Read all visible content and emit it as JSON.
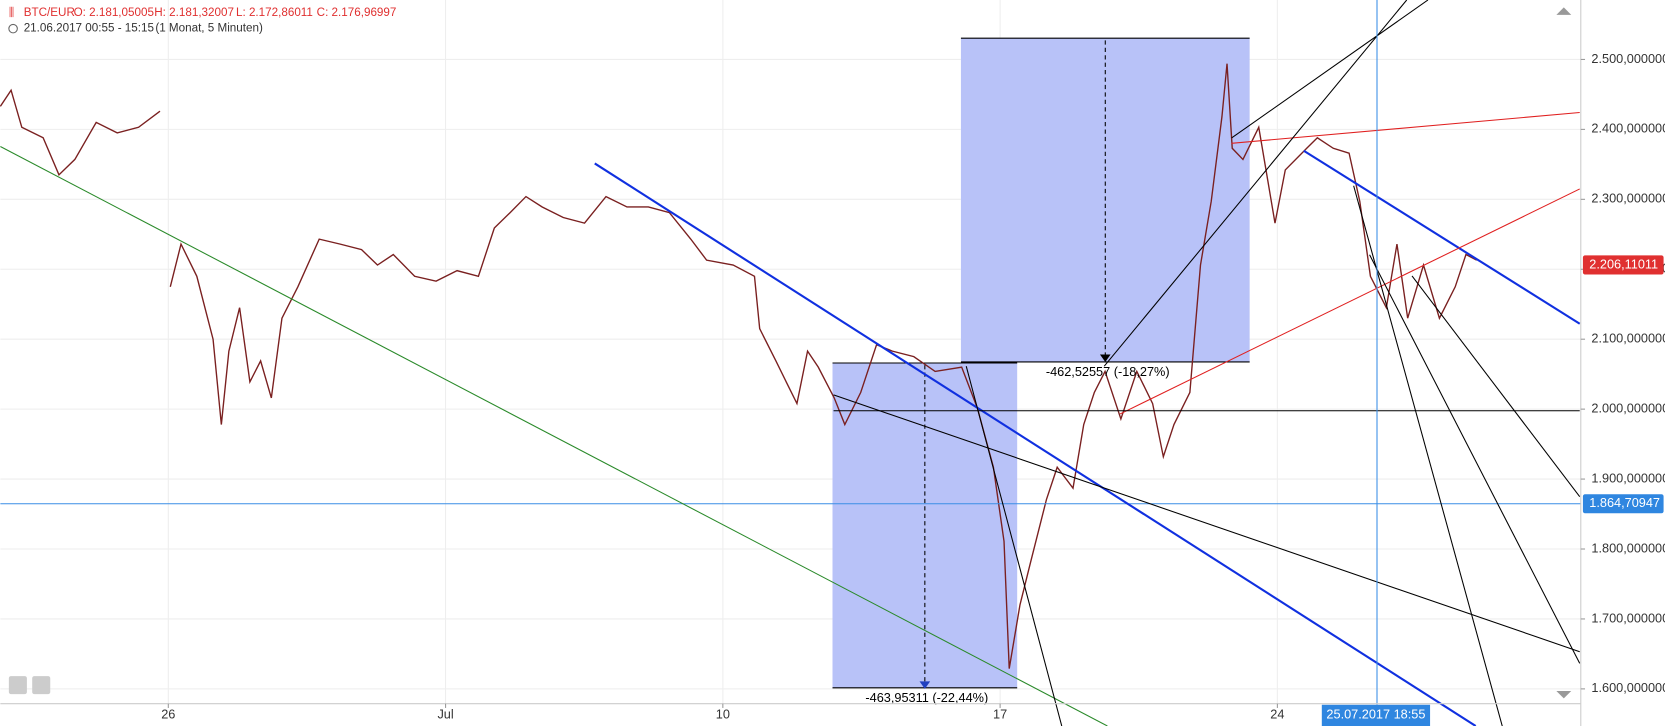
{
  "chart_data": {
    "type": "line",
    "symbol": "BTC/EUR",
    "open": "O: 2.181,05005",
    "high": "H: 2.181,32007",
    "low": "L: 2.172,86011",
    "close": "C: 2.176,96997",
    "period": "21.06.2017 00:55 - 15:15",
    "interval": "(1 Monat, 5 Minuten)",
    "color": "#7a2020",
    "x": [
      -4.24,
      -3.97,
      -3.7,
      -3.16,
      -2.76,
      -2.36,
      -1.82,
      -1.29,
      -0.75,
      -0.21,
      -0.08,
      0.05,
      0.32,
      0.72,
      1.13,
      1.34,
      1.53,
      1.8,
      2.06,
      2.33,
      2.6,
      2.87,
      3.27,
      3.81,
      4.34,
      4.88,
      5.28,
      5.68,
      6.22,
      6.76,
      7.29,
      7.83,
      8.23,
      8.63,
      9.03,
      9.44,
      9.97,
      10.51,
      11.05,
      11.58,
      12.12,
      12.65,
      13.19,
      13.59,
      14.26,
      14.8,
      14.93,
      15.34,
      15.6,
      15.87,
      16.14,
      16.41,
      16.81,
      17.08,
      17.48,
      17.88,
      18.28,
      18.82,
      19.36,
      20.03,
      20.43,
      20.83,
      21.1,
      21.23,
      21.5,
      21.77,
      22.17,
      22.44,
      22.84,
      23.11,
      23.38,
      23.65,
      24.05,
      24.45,
      24.85,
      25.12,
      25.39,
      25.79,
      26.06,
      26.33,
      26.6,
      26.73,
      26.86,
      27.13,
      27.53,
      27.94,
      28.2,
      28.74,
      29.01,
      29.41,
      29.81,
      30.08,
      30.35,
      30.75,
      31.02,
      31.29,
      31.69,
      32.09,
      32.49,
      32.76,
      33.03
    ],
    "values": [
      2433,
      2456,
      2403,
      2388,
      2335,
      2357,
      2410,
      2395,
      2403,
      2426,
      null,
      2175,
      2236,
      2190,
      2100,
      1978,
      2083,
      2145,
      2039,
      2069,
      2016,
      2130,
      2175,
      2243,
      2236,
      2228,
      2206,
      2221,
      2190,
      2183,
      2198,
      2190,
      2259,
      2281,
      2304,
      2289,
      2274,
      2266,
      2304,
      2289,
      2289,
      2281,
      2243,
      2213,
      2206,
      2190,
      2115,
      2069,
      2039,
      2008,
      2083,
      2060,
      2016,
      1978,
      2024,
      2092,
      2083,
      2075,
      2054,
      2060,
      2001,
      1917,
      1811,
      1629,
      1720,
      1781,
      1871,
      1917,
      1887,
      1978,
      2024,
      2054,
      1986,
      2054,
      2008,
      1932,
      1978,
      2024,
      2206,
      2297,
      2418,
      2494,
      2373,
      2357,
      2403,
      2266,
      2342,
      2373,
      2388,
      2373,
      2366,
      2297,
      2190,
      2145,
      2236,
      2130,
      2206,
      2130,
      2175,
      2221,
      2213
    ],
    "xlim": [
      -4.24,
      35.66
    ],
    "xticks": [
      {
        "value": 0,
        "label": "26"
      },
      {
        "value": 7,
        "label": "Jul"
      },
      {
        "value": 14,
        "label": "10"
      },
      {
        "value": 21,
        "label": "17"
      },
      {
        "value": 28,
        "label": "24"
      }
    ],
    "ylim": [
      1578.8,
      2585
    ],
    "yticks": [
      {
        "value": 1600,
        "label": "1.600,000000"
      },
      {
        "value": 1700,
        "label": "1.700,000000"
      },
      {
        "value": 1800,
        "label": "1.800,000000"
      },
      {
        "value": 1900,
        "label": "1.900,000000"
      },
      {
        "value": 2000,
        "label": "2.000,000000"
      },
      {
        "value": 2100,
        "label": "2.100,000000"
      },
      {
        "value": 2200,
        "label": "2.200,000000"
      },
      {
        "value": 2300,
        "label": "2.300,000000"
      },
      {
        "value": 2400,
        "label": "2.400,000000"
      },
      {
        "value": 2500,
        "label": "2.500,000000"
      }
    ],
    "grid": true,
    "last_price": {
      "value": 2206.11011,
      "label": "2.206,11011"
    },
    "crosshair_price": {
      "value": 1864.70947,
      "label": "1.864,70947"
    },
    "crosshair_date": "25.07.2017 18:55",
    "measure_upper": "-462,52557 (-18,27%)",
    "measure_lower": "-463,95311 (-22,44%)"
  }
}
